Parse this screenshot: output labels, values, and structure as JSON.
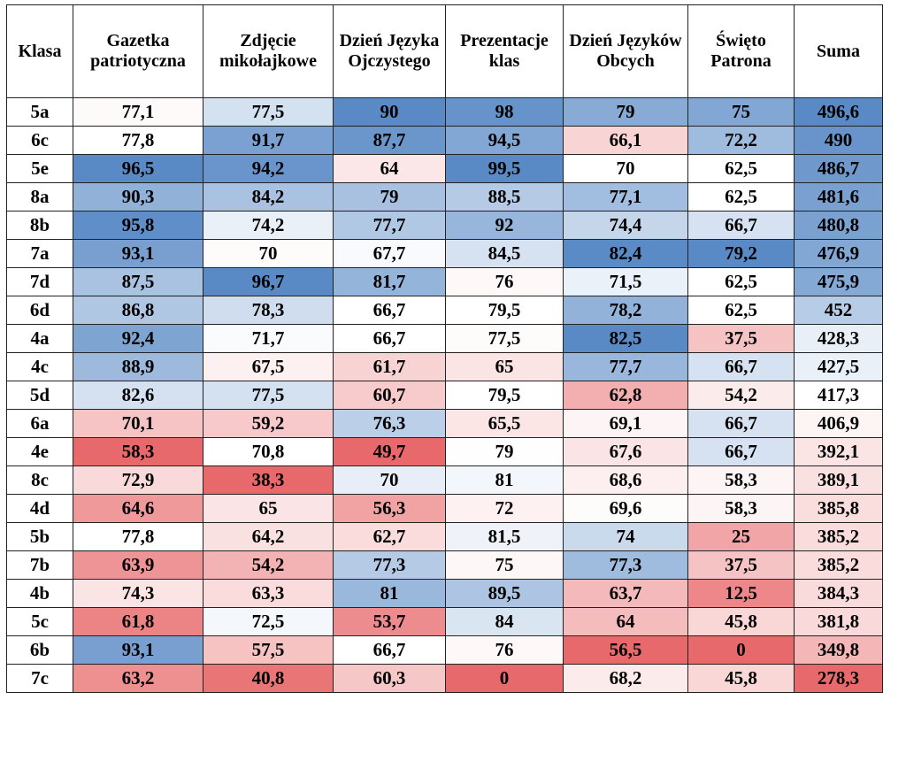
{
  "chart_data": {
    "type": "heatmap",
    "columns": [
      "Klasa",
      "Gazetka patriotyczna",
      "Zdjęcie mikołajkowe",
      "Dzień Języka Ojczystego",
      "Prezentacje klas",
      "Dzień Języków Obcych",
      "Święto Patrona",
      "Suma"
    ],
    "rows": [
      {
        "klasa": "5a",
        "values": [
          "77,1",
          "77,5",
          "90",
          "98",
          "79",
          "75",
          "496,6"
        ]
      },
      {
        "klasa": "6c",
        "values": [
          "77,8",
          "91,7",
          "87,7",
          "94,5",
          "66,1",
          "72,2",
          "490"
        ]
      },
      {
        "klasa": "5e",
        "values": [
          "96,5",
          "94,2",
          "64",
          "99,5",
          "70",
          "62,5",
          "486,7"
        ]
      },
      {
        "klasa": "8a",
        "values": [
          "90,3",
          "84,2",
          "79",
          "88,5",
          "77,1",
          "62,5",
          "481,6"
        ]
      },
      {
        "klasa": "8b",
        "values": [
          "95,8",
          "74,2",
          "77,7",
          "92",
          "74,4",
          "66,7",
          "480,8"
        ]
      },
      {
        "klasa": "7a",
        "values": [
          "93,1",
          "70",
          "67,7",
          "84,5",
          "82,4",
          "79,2",
          "476,9"
        ]
      },
      {
        "klasa": "7d",
        "values": [
          "87,5",
          "96,7",
          "81,7",
          "76",
          "71,5",
          "62,5",
          "475,9"
        ]
      },
      {
        "klasa": "6d",
        "values": [
          "86,8",
          "78,3",
          "66,7",
          "79,5",
          "78,2",
          "62,5",
          "452"
        ]
      },
      {
        "klasa": "4a",
        "values": [
          "92,4",
          "71,7",
          "66,7",
          "77,5",
          "82,5",
          "37,5",
          "428,3"
        ]
      },
      {
        "klasa": "4c",
        "values": [
          "88,9",
          "67,5",
          "61,7",
          "65",
          "77,7",
          "66,7",
          "427,5"
        ]
      },
      {
        "klasa": "5d",
        "values": [
          "82,6",
          "77,5",
          "60,7",
          "79,5",
          "62,8",
          "54,2",
          "417,3"
        ]
      },
      {
        "klasa": "6a",
        "values": [
          "70,1",
          "59,2",
          "76,3",
          "65,5",
          "69,1",
          "66,7",
          "406,9"
        ]
      },
      {
        "klasa": "4e",
        "values": [
          "58,3",
          "70,8",
          "49,7",
          "79",
          "67,6",
          "66,7",
          "392,1"
        ]
      },
      {
        "klasa": "8c",
        "values": [
          "72,9",
          "38,3",
          "70",
          "81",
          "68,6",
          "58,3",
          "389,1"
        ]
      },
      {
        "klasa": "4d",
        "values": [
          "64,6",
          "65",
          "56,3",
          "72",
          "69,6",
          "58,3",
          "385,8"
        ]
      },
      {
        "klasa": "5b",
        "values": [
          "77,8",
          "64,2",
          "62,7",
          "81,5",
          "74",
          "25",
          "385,2"
        ]
      },
      {
        "klasa": "7b",
        "values": [
          "63,9",
          "54,2",
          "77,3",
          "75",
          "77,3",
          "37,5",
          "385,2"
        ]
      },
      {
        "klasa": "4b",
        "values": [
          "74,3",
          "63,3",
          "81",
          "89,5",
          "63,7",
          "12,5",
          "384,3"
        ]
      },
      {
        "klasa": "5c",
        "values": [
          "61,8",
          "72,5",
          "53,7",
          "84",
          "64",
          "45,8",
          "381,8"
        ]
      },
      {
        "klasa": "6b",
        "values": [
          "93,1",
          "57,5",
          "66,7",
          "76",
          "56,5",
          "0",
          "349,8"
        ]
      },
      {
        "klasa": "7c",
        "values": [
          "63,2",
          "40,8",
          "60,3",
          "0",
          "68,2",
          "45,8",
          "278,3"
        ]
      }
    ],
    "color_scale": {
      "low": "#e8696b",
      "mid": "#ffffff",
      "high": "#5a8ac6"
    }
  }
}
